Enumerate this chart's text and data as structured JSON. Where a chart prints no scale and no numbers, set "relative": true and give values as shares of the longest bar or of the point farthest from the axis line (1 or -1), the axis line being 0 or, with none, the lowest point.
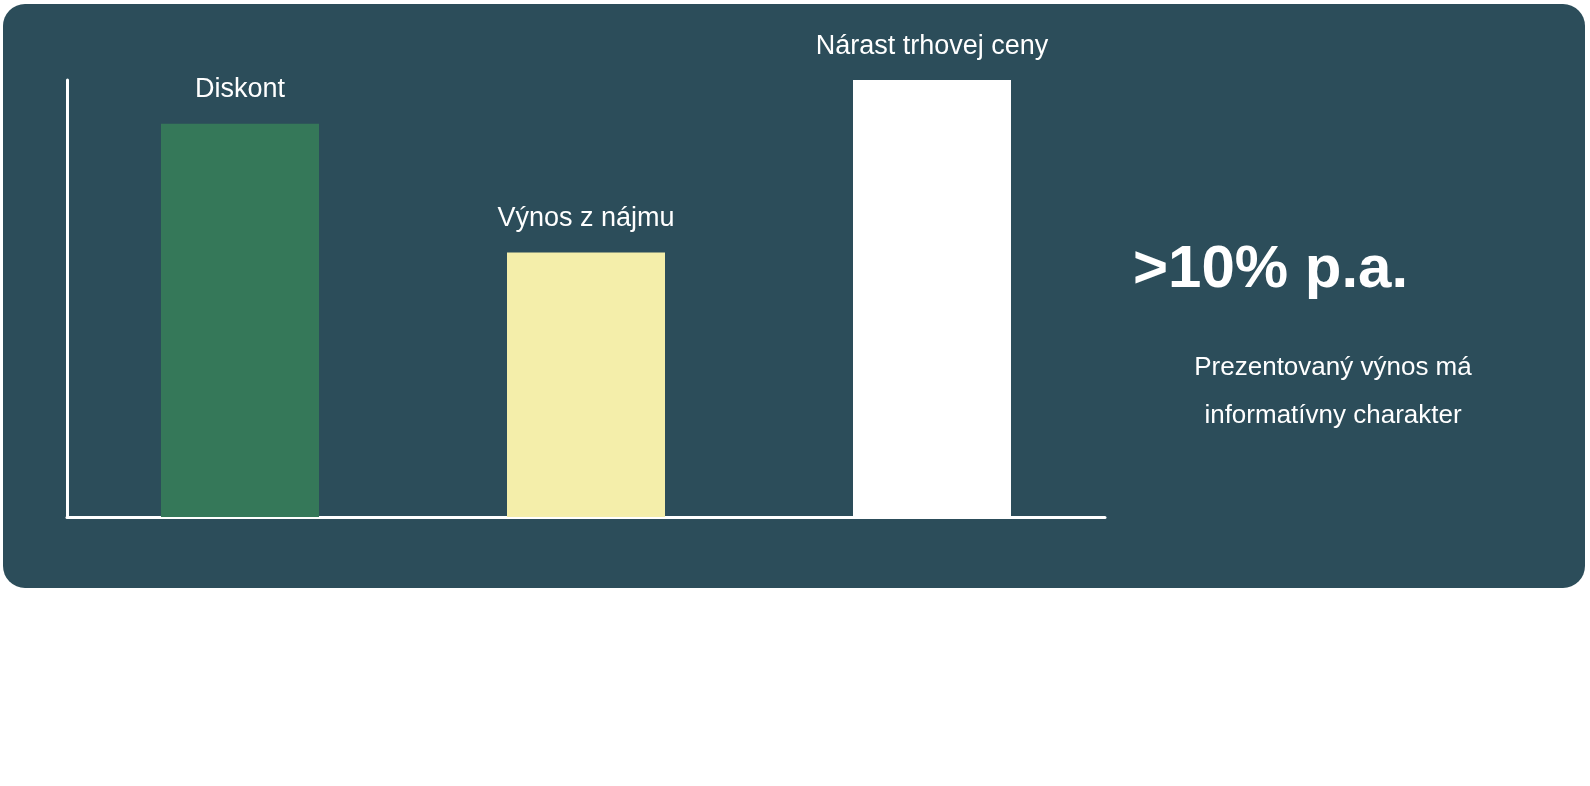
{
  "chart_data": {
    "type": "bar",
    "relative": true,
    "categories": [
      "Diskont",
      "Výnos z nájmu",
      "Nárast trhovej ceny"
    ],
    "values": [
      0.9,
      0.605,
      1
    ],
    "colors": [
      "#357859",
      "#f4eeaa",
      "#ffffff"
    ],
    "grid": false,
    "tick_labels": false,
    "annotations": [
      ">10% p.a.",
      "Prezentovaný výnos má\ninformatívny charakter"
    ]
  }
}
